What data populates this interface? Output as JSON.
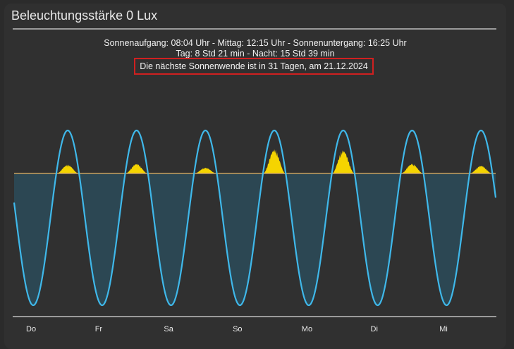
{
  "card": {
    "title": "Beleuchtungsstärke 0 Lux",
    "sun_times": "Sonnenaufgang: 08:04 Uhr - Mittag: 12:15 Uhr - Sonnenuntergang: 16:25 Uhr",
    "day_night": "Tag: 8 Std 21 min - Nacht: 15 Std 39 min",
    "solstice": "Die nächste Sonnenwende ist in 31 Tagen, am 21.12.2024"
  },
  "chart_data": {
    "type": "area",
    "x": [
      "Do",
      "Fr",
      "Sa",
      "So",
      "Mo",
      "Di",
      "Mi"
    ],
    "series": [
      {
        "values": [
          0.18,
          0.2,
          0.12,
          0.5,
          0.48,
          0.2,
          0.16
        ]
      }
    ],
    "colors": {
      "sun_curve": "#3fb8ea",
      "night_fill": "#2c4a58",
      "illuminance": "#f5d400",
      "horizon": "#c8a060",
      "separator": "#9a9a9a"
    },
    "grid": false,
    "legend": "none"
  }
}
